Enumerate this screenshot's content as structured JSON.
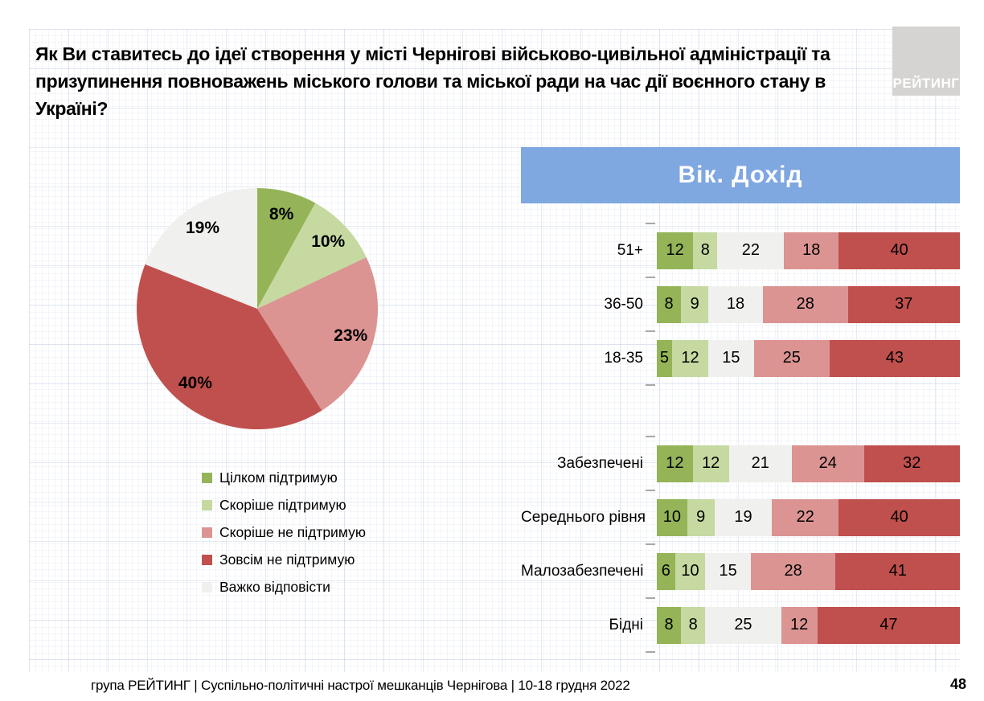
{
  "slide": {
    "title": "Як Ви ставитесь до ідеї створення у місті Чернігові військово-цивільної адміністрації та призупинення повноважень міського голови та міської ради на час дії воєнного стану в Україні?",
    "logo_text": "РЕЙТИНГ",
    "footer_text": "група РЕЙТИНГ | Суспільно-політичні настрої мешканців Чернігова | 10-18 грудня 2022",
    "page_number": "48"
  },
  "colors": {
    "support_full": "#94B457",
    "support_rather": "#C5D9A0",
    "oppose_rather": "#DB9492",
    "oppose_full": "#C0504D",
    "hard_to_say": "#F0F0EE",
    "panel_header_bg": "#7FA7E0",
    "logo_bg": "#D6D4D2"
  },
  "chart_data": [
    {
      "type": "pie",
      "labels": [
        "Цілком підтримую",
        "Скоріше підтримую",
        "Скоріше не підтримую",
        "Зовсім не підтримую",
        "Важко відповісти"
      ],
      "values": [
        8,
        10,
        23,
        40,
        19
      ],
      "value_labels": [
        "8%",
        "10%",
        "23%",
        "40%",
        "19%"
      ],
      "colors": [
        "#94B457",
        "#C5D9A0",
        "#DB9492",
        "#C0504D",
        "#F0F0EE"
      ],
      "start_angle_deg": 0,
      "direction": "clockwise",
      "legend_position": "below-left"
    },
    {
      "type": "bar",
      "orientation": "horizontal-stacked",
      "header": "Вік. Дохід",
      "series": [
        "Цілком підтримую",
        "Скоріше підтримую",
        "Скоріше не підтримую",
        "Зовсім не підтримую",
        "Важко відповісти"
      ],
      "colors": [
        "#94B457",
        "#C5D9A0",
        "#F0F0EE",
        "#DB9492",
        "#C0504D"
      ],
      "segment_order_note": "bars render green, light-green, gray, pink, dark-red left to right",
      "groups": [
        {
          "id": "age",
          "categories": [
            "51+",
            "36-50",
            "18-35"
          ],
          "rows": [
            [
              12,
              8,
              22,
              18,
              40
            ],
            [
              8,
              9,
              18,
              28,
              37
            ],
            [
              5,
              12,
              15,
              25,
              43
            ]
          ]
        },
        {
          "id": "income",
          "categories": [
            "Забезпечені",
            "Середнього рівня",
            "Малозабезпечені",
            "Бідні"
          ],
          "rows": [
            [
              12,
              12,
              21,
              24,
              32
            ],
            [
              10,
              9,
              19,
              22,
              40
            ],
            [
              6,
              10,
              15,
              28,
              41
            ],
            [
              8,
              8,
              25,
              12,
              47
            ]
          ]
        }
      ]
    }
  ]
}
